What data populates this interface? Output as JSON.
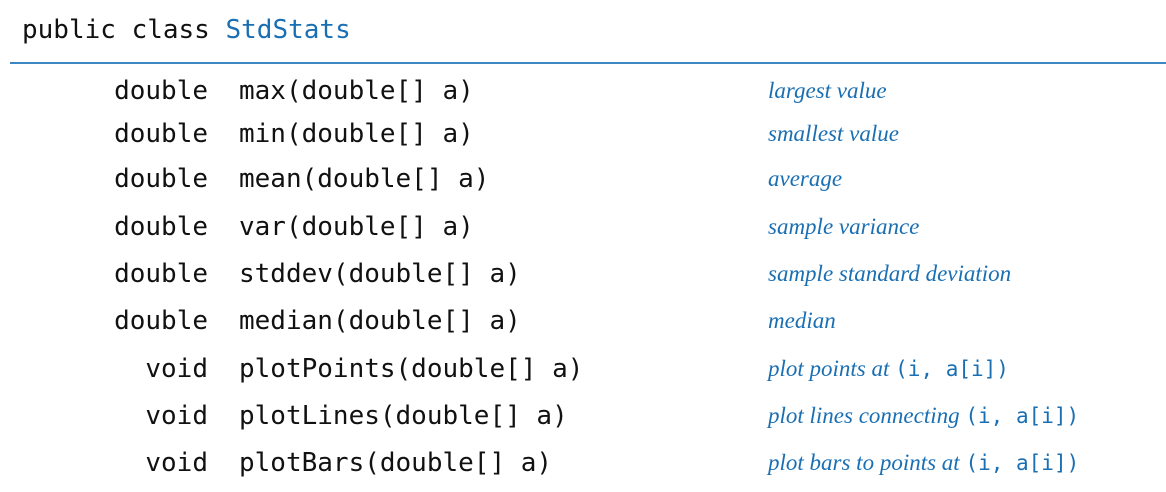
{
  "header": {
    "prefix": "public class ",
    "class_name": "StdStats"
  },
  "methods": [
    {
      "return_type": "double",
      "signature": "max(double[] a)",
      "description": "largest value",
      "code_suffix": ""
    },
    {
      "return_type": "double",
      "signature": "min(double[] a)",
      "description": "smallest value",
      "code_suffix": ""
    },
    {
      "return_type": "double",
      "signature": "mean(double[] a)",
      "description": "average",
      "code_suffix": ""
    },
    {
      "return_type": "double",
      "signature": "var(double[] a)",
      "description": "sample variance",
      "code_suffix": ""
    },
    {
      "return_type": "double",
      "signature": "stddev(double[] a)",
      "description": "sample standard deviation",
      "code_suffix": ""
    },
    {
      "return_type": "double",
      "signature": "median(double[] a)",
      "description": "median",
      "code_suffix": ""
    },
    {
      "return_type": "void",
      "signature": "plotPoints(double[] a)",
      "description": "plot points at ",
      "code_suffix": "(i, a[i])"
    },
    {
      "return_type": "void",
      "signature": "plotLines(double[] a)",
      "description": "plot lines connecting ",
      "code_suffix": "(i, a[i])"
    },
    {
      "return_type": "void",
      "signature": "plotBars(double[] a)",
      "description": "plot bars to points at ",
      "code_suffix": "(i, a[i])"
    }
  ],
  "colors": {
    "accent": "#1a6fb3",
    "rule": "#3c86c4",
    "text": "#111111"
  }
}
